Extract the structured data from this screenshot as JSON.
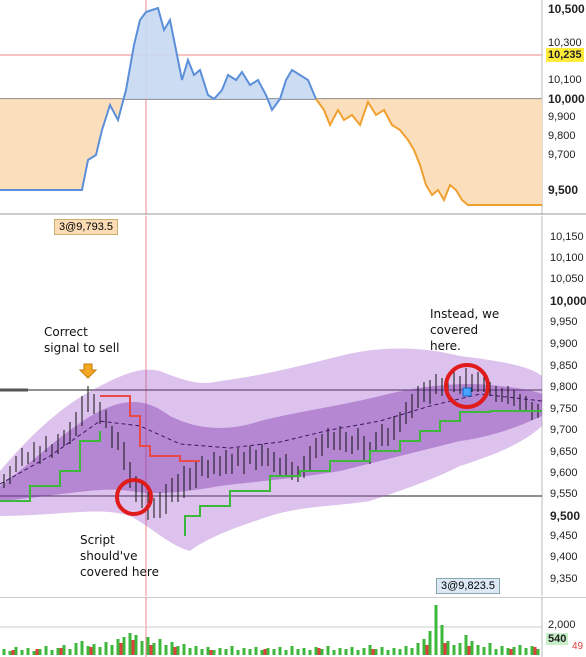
{
  "colors": {
    "price_line_up": "#5b8fd9",
    "price_line_down": "#f0a030",
    "fill_up": "#c6d8f2",
    "fill_down": "#fbdcb5",
    "band_fill": "#9c4fc9",
    "marker_ring": "#e01b1b",
    "highlight_tag": "#ffeb3b",
    "volume_green": "#3db83d",
    "volume_red": "#e04040"
  },
  "top_panel": {
    "y_ticks": [
      "10,500",
      "10,300",
      "10,100",
      "10,000",
      "9,900",
      "9,800",
      "9,700",
      "9,500"
    ],
    "last_price_tag": "10,235"
  },
  "main_panel": {
    "position_badge_left": "3@9,793.5",
    "position_badge_right": "3@9,823.5",
    "y_ticks": [
      "10,150",
      "10,100",
      "10,050",
      "10,000",
      "9,950",
      "9,900",
      "9,850",
      "9,800",
      "9,750",
      "9,700",
      "9,650",
      "9,600",
      "9,550",
      "9,500",
      "9,450",
      "9,400",
      "9,350"
    ],
    "annotation_sell": "Correct signal to sell",
    "annotation_sell_lines": [
      "Correct",
      "signal to sell"
    ],
    "annotation_script": "Script should've covered here",
    "annotation_script_lines": [
      "Script",
      "should've",
      "covered here"
    ],
    "annotation_instead": "Instead, we covered here.",
    "annotation_instead_lines": [
      "Instead, we",
      "covered",
      "here."
    ]
  },
  "volume_panel": {
    "y_ticks": [
      "2,000"
    ],
    "last_volume_tag": "540",
    "last_volume_tag_red": "49"
  }
}
